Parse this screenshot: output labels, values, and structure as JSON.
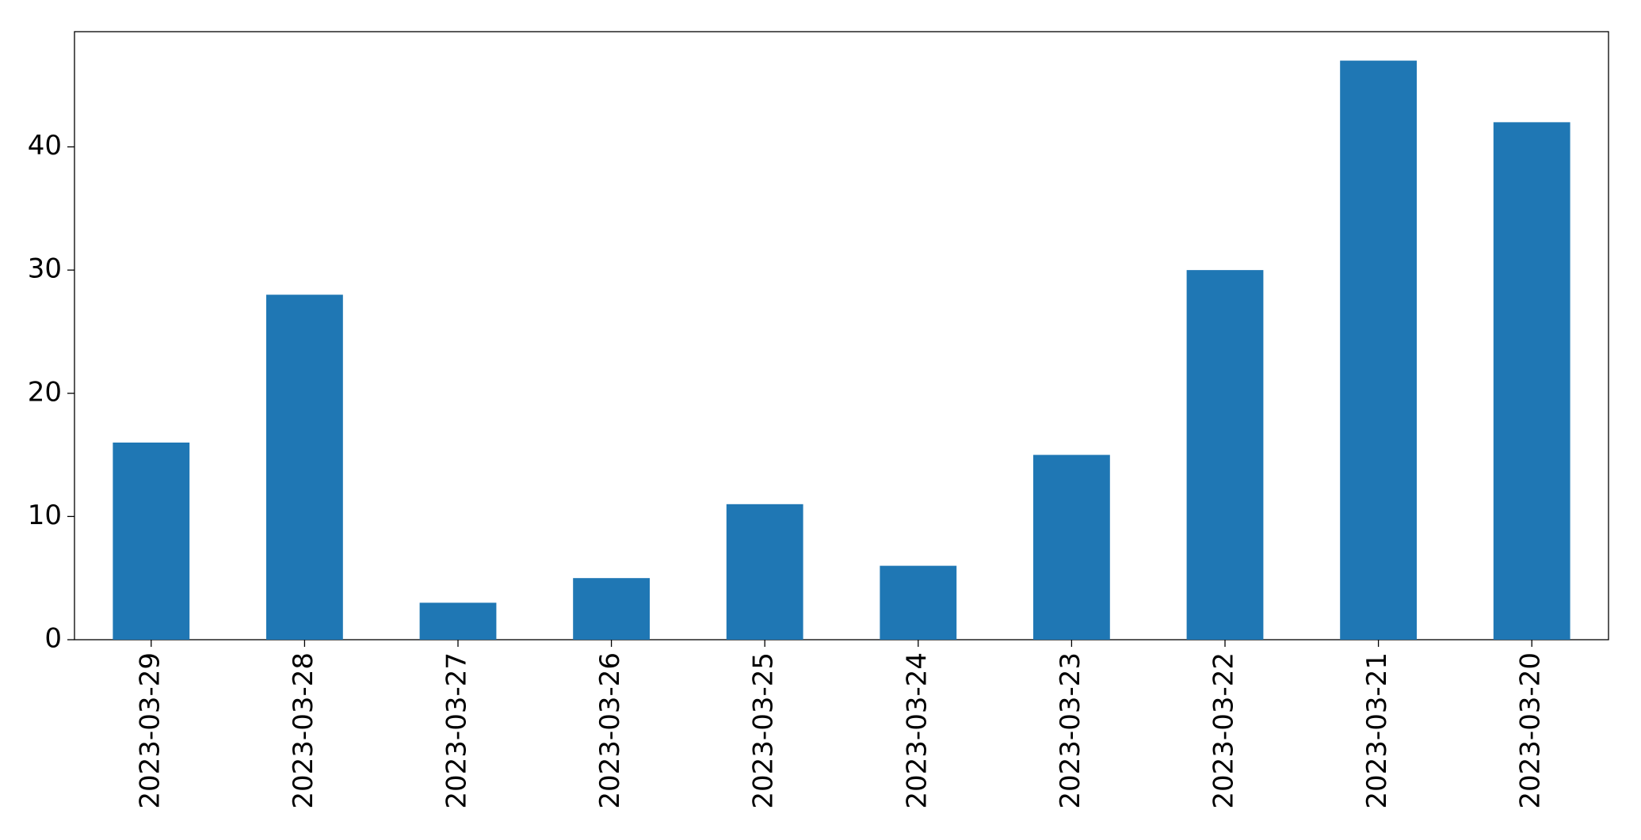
{
  "chart_data": {
    "type": "bar",
    "categories": [
      "2023-03-29",
      "2023-03-28",
      "2023-03-27",
      "2023-03-26",
      "2023-03-25",
      "2023-03-24",
      "2023-03-23",
      "2023-03-22",
      "2023-03-21",
      "2023-03-20"
    ],
    "values": [
      16,
      28,
      3,
      5,
      11,
      6,
      15,
      30,
      47,
      42
    ],
    "color": "#1f77b4",
    "ylim": [
      0,
      49.35
    ],
    "yticks": [
      0,
      10,
      20,
      30,
      40
    ],
    "grid": false
  }
}
